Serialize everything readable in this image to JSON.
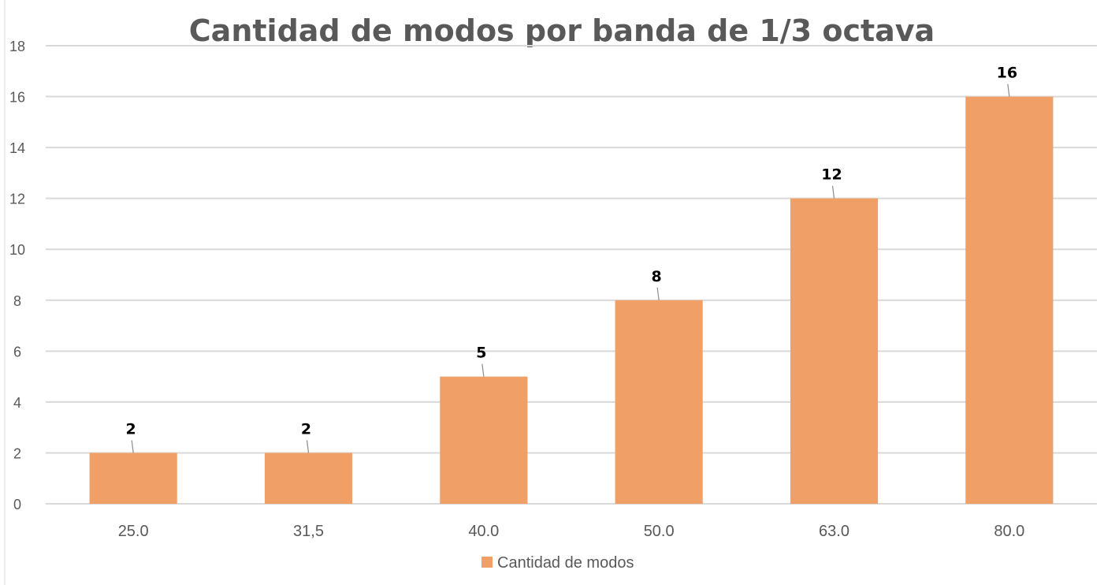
{
  "chart_data": {
    "type": "bar",
    "title": "Cantidad de modos por banda de 1/3 octava",
    "categories": [
      "25.0",
      "31,5",
      "40.0",
      "50.0",
      "63.0",
      "80.0"
    ],
    "series": [
      {
        "name": "Cantidad de modos",
        "values": [
          2,
          2,
          5,
          8,
          12,
          16
        ]
      }
    ],
    "xlabel": "",
    "ylabel": "",
    "ylim": [
      0,
      18
    ],
    "yticks": [
      0,
      2,
      4,
      6,
      8,
      10,
      12,
      14,
      16,
      18
    ],
    "grid": true,
    "legend": "bottom",
    "data_labels": true,
    "colors": {
      "bar": "#F0A066",
      "grid": "#D9D9D9",
      "text": "#595959"
    }
  }
}
